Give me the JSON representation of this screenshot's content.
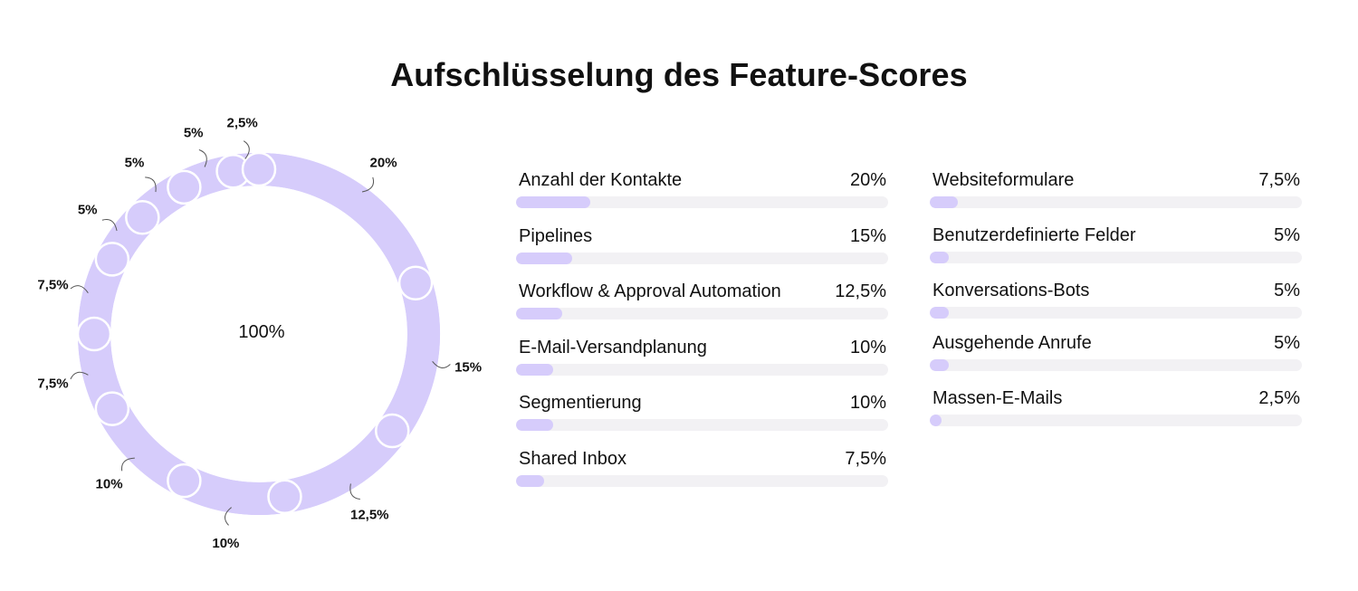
{
  "title": "Aufschlüsselung des Feature-Scores",
  "colors": {
    "accent": "#d6ccfb",
    "track": "#f2f1f4",
    "text": "#111111",
    "leader": "#555555"
  },
  "chart_data": [
    {
      "type": "pie",
      "variant": "donut",
      "center_label": "100%",
      "slices": [
        {
          "label": "20%",
          "value": 20
        },
        {
          "label": "15%",
          "value": 15
        },
        {
          "label": "12,5%",
          "value": 12.5
        },
        {
          "label": "10%",
          "value": 10
        },
        {
          "label": "10%",
          "value": 10
        },
        {
          "label": "7,5%",
          "value": 7.5
        },
        {
          "label": "7,5%",
          "value": 7.5
        },
        {
          "label": "5%",
          "value": 5
        },
        {
          "label": "5%",
          "value": 5
        },
        {
          "label": "5%",
          "value": 5
        },
        {
          "label": "2,5%",
          "value": 2.5
        }
      ]
    },
    {
      "type": "bar",
      "orientation": "horizontal",
      "max": 100,
      "columns": [
        {
          "items": [
            {
              "label": "Anzahl der Kontakte",
              "value": 20,
              "display": "20%"
            },
            {
              "label": "Pipelines",
              "value": 15,
              "display": "15%"
            },
            {
              "label": "Workflow & Approval Automation",
              "value": 12.5,
              "display": "12,5%"
            },
            {
              "label": "E-Mail-Versandplanung",
              "value": 10,
              "display": "10%"
            },
            {
              "label": "Segmentierung",
              "value": 10,
              "display": "10%"
            },
            {
              "label": "Shared Inbox",
              "value": 7.5,
              "display": "7,5%"
            }
          ]
        },
        {
          "items": [
            {
              "label": "Websiteformulare",
              "value": 7.5,
              "display": "7,5%"
            },
            {
              "label": "Benutzerdefinierte Felder",
              "value": 5,
              "display": "5%"
            },
            {
              "label": "Konversations-Bots",
              "value": 5,
              "display": "5%"
            },
            {
              "label": "Ausgehende Anrufe",
              "value": 5,
              "display": "5%"
            },
            {
              "label": "Massen-E-Mails",
              "value": 2.5,
              "display": "2,5%"
            }
          ]
        }
      ]
    }
  ]
}
